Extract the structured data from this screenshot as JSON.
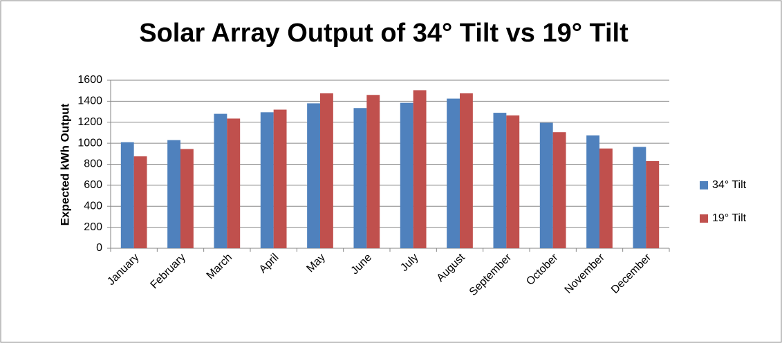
{
  "chart_data": {
    "type": "bar",
    "title": "Solar Array Output of 34° Tilt vs 19° Tilt",
    "y_label": "Expected kWh Output",
    "categories": [
      "January",
      "February",
      "March",
      "April",
      "May",
      "June",
      "July",
      "August",
      "September",
      "October",
      "November",
      "December"
    ],
    "series": [
      {
        "name": "34° Tilt",
        "color": "#4f81bd",
        "values": [
          1010,
          1030,
          1280,
          1295,
          1380,
          1335,
          1385,
          1425,
          1290,
          1195,
          1075,
          965
        ]
      },
      {
        "name": "19° Tilt",
        "color": "#c0504d",
        "values": [
          875,
          945,
          1235,
          1320,
          1475,
          1460,
          1505,
          1475,
          1265,
          1105,
          950,
          830
        ]
      }
    ],
    "ylim": [
      0,
      1600
    ],
    "yticks": [
      0,
      200,
      400,
      600,
      800,
      1000,
      1200,
      1400,
      1600
    ],
    "grid": true,
    "legend": "right"
  }
}
